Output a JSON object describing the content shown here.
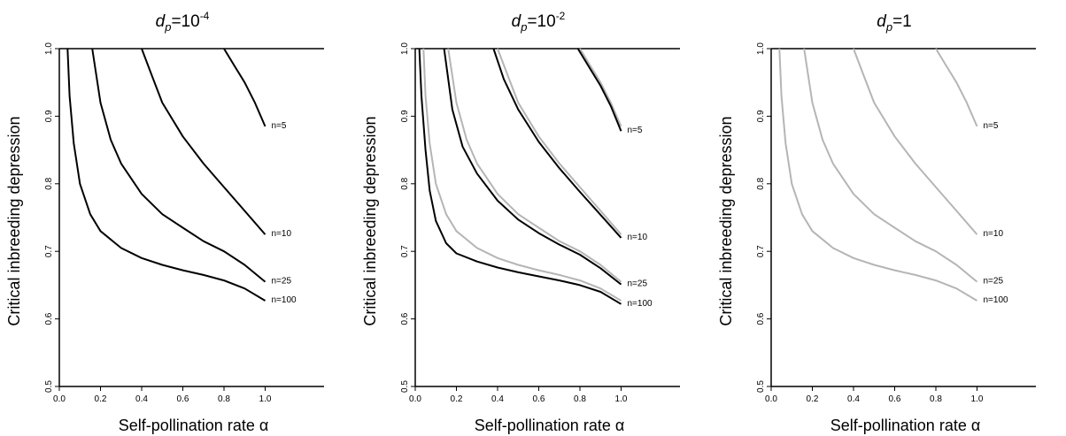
{
  "chart_data": [
    {
      "type": "line",
      "title": {
        "base": "d",
        "sub": "p",
        "mid": "=10",
        "sup": "-4"
      },
      "xlabel": "Self-pollination rate α",
      "ylabel": "Critical inbreeding depression",
      "xlim": [
        0,
        1.2
      ],
      "ylim": [
        0.5,
        1.0
      ],
      "xticks": [
        "0.0",
        "0.2",
        "0.4",
        "0.6",
        "0.8",
        "1.0"
      ],
      "yticks": [
        "0.5",
        "0.6",
        "0.7",
        "0.8",
        "0.9",
        "1.0"
      ],
      "series": [
        {
          "name": "n=5",
          "color": "#000000",
          "points": [
            [
              0.8,
              1.0
            ],
            [
              0.85,
              0.975
            ],
            [
              0.9,
              0.95
            ],
            [
              0.95,
              0.92
            ],
            [
              1.0,
              0.885
            ]
          ]
        },
        {
          "name": "n=10",
          "color": "#000000",
          "points": [
            [
              0.4,
              1.0
            ],
            [
              0.45,
              0.96
            ],
            [
              0.5,
              0.92
            ],
            [
              0.6,
              0.87
            ],
            [
              0.7,
              0.83
            ],
            [
              0.8,
              0.795
            ],
            [
              0.9,
              0.76
            ],
            [
              1.0,
              0.725
            ]
          ]
        },
        {
          "name": "n=25",
          "color": "#000000",
          "points": [
            [
              0.16,
              1.0
            ],
            [
              0.2,
              0.92
            ],
            [
              0.25,
              0.865
            ],
            [
              0.3,
              0.83
            ],
            [
              0.4,
              0.785
            ],
            [
              0.5,
              0.755
            ],
            [
              0.6,
              0.735
            ],
            [
              0.7,
              0.715
            ],
            [
              0.8,
              0.7
            ],
            [
              0.9,
              0.68
            ],
            [
              1.0,
              0.655
            ]
          ]
        },
        {
          "name": "n=100",
          "color": "#000000",
          "points": [
            [
              0.04,
              1.0
            ],
            [
              0.05,
              0.93
            ],
            [
              0.07,
              0.86
            ],
            [
              0.1,
              0.8
            ],
            [
              0.15,
              0.755
            ],
            [
              0.2,
              0.73
            ],
            [
              0.3,
              0.705
            ],
            [
              0.4,
              0.69
            ],
            [
              0.5,
              0.68
            ],
            [
              0.6,
              0.672
            ],
            [
              0.7,
              0.665
            ],
            [
              0.8,
              0.657
            ],
            [
              0.9,
              0.645
            ],
            [
              1.0,
              0.627
            ]
          ]
        }
      ]
    },
    {
      "type": "line",
      "title": {
        "base": "d",
        "sub": "p",
        "mid": "=10",
        "sup": "-2"
      },
      "xlabel": "Self-pollination rate α",
      "ylabel": "Critical inbreeding depression",
      "xlim": [
        0,
        1.2
      ],
      "ylim": [
        0.5,
        1.0
      ],
      "xticks": [
        "0.0",
        "0.2",
        "0.4",
        "0.6",
        "0.8",
        "1.0"
      ],
      "yticks": [
        "0.5",
        "0.6",
        "0.7",
        "0.8",
        "0.9",
        "1.0"
      ],
      "series": [
        {
          "color": "#b5b5b5",
          "points": [
            [
              0.8,
              1.0
            ],
            [
              0.85,
              0.975
            ],
            [
              0.9,
              0.95
            ],
            [
              0.95,
              0.92
            ],
            [
              1.0,
              0.885
            ]
          ]
        },
        {
          "color": "#b5b5b5",
          "points": [
            [
              0.4,
              1.0
            ],
            [
              0.45,
              0.96
            ],
            [
              0.5,
              0.92
            ],
            [
              0.6,
              0.87
            ],
            [
              0.7,
              0.83
            ],
            [
              0.8,
              0.795
            ],
            [
              0.9,
              0.76
            ],
            [
              1.0,
              0.725
            ]
          ]
        },
        {
          "color": "#b5b5b5",
          "points": [
            [
              0.16,
              1.0
            ],
            [
              0.2,
              0.92
            ],
            [
              0.25,
              0.865
            ],
            [
              0.3,
              0.83
            ],
            [
              0.4,
              0.785
            ],
            [
              0.5,
              0.755
            ],
            [
              0.6,
              0.735
            ],
            [
              0.7,
              0.715
            ],
            [
              0.8,
              0.7
            ],
            [
              0.9,
              0.68
            ],
            [
              1.0,
              0.655
            ]
          ]
        },
        {
          "color": "#b5b5b5",
          "points": [
            [
              0.04,
              1.0
            ],
            [
              0.05,
              0.93
            ],
            [
              0.07,
              0.86
            ],
            [
              0.1,
              0.8
            ],
            [
              0.15,
              0.755
            ],
            [
              0.2,
              0.73
            ],
            [
              0.3,
              0.705
            ],
            [
              0.4,
              0.69
            ],
            [
              0.5,
              0.68
            ],
            [
              0.6,
              0.672
            ],
            [
              0.7,
              0.665
            ],
            [
              0.8,
              0.657
            ],
            [
              0.9,
              0.645
            ],
            [
              1.0,
              0.627
            ]
          ]
        },
        {
          "name": "n=5",
          "color": "#000000",
          "points": [
            [
              0.79,
              1.0
            ],
            [
              0.85,
              0.97
            ],
            [
              0.9,
              0.945
            ],
            [
              0.95,
              0.915
            ],
            [
              1.0,
              0.878
            ]
          ]
        },
        {
          "name": "n=10",
          "color": "#000000",
          "points": [
            [
              0.38,
              1.0
            ],
            [
              0.43,
              0.955
            ],
            [
              0.5,
              0.91
            ],
            [
              0.6,
              0.862
            ],
            [
              0.7,
              0.823
            ],
            [
              0.8,
              0.788
            ],
            [
              0.9,
              0.754
            ],
            [
              1.0,
              0.72
            ]
          ]
        },
        {
          "name": "n=25",
          "color": "#000000",
          "points": [
            [
              0.14,
              1.0
            ],
            [
              0.18,
              0.91
            ],
            [
              0.23,
              0.855
            ],
            [
              0.3,
              0.815
            ],
            [
              0.4,
              0.775
            ],
            [
              0.5,
              0.747
            ],
            [
              0.6,
              0.727
            ],
            [
              0.7,
              0.71
            ],
            [
              0.8,
              0.695
            ],
            [
              0.9,
              0.675
            ],
            [
              1.0,
              0.651
            ]
          ]
        },
        {
          "name": "n=100",
          "color": "#000000",
          "points": [
            [
              0.02,
              1.0
            ],
            [
              0.03,
              0.93
            ],
            [
              0.05,
              0.85
            ],
            [
              0.07,
              0.79
            ],
            [
              0.1,
              0.745
            ],
            [
              0.15,
              0.712
            ],
            [
              0.2,
              0.697
            ],
            [
              0.3,
              0.685
            ],
            [
              0.4,
              0.676
            ],
            [
              0.5,
              0.669
            ],
            [
              0.6,
              0.663
            ],
            [
              0.7,
              0.657
            ],
            [
              0.8,
              0.65
            ],
            [
              0.9,
              0.64
            ],
            [
              1.0,
              0.622
            ]
          ]
        }
      ]
    },
    {
      "type": "line",
      "title": {
        "base": "d",
        "sub": "p",
        "mid": "=1",
        "sup": ""
      },
      "xlabel": "Self-pollination rate α",
      "ylabel": "Critical inbreeding depression",
      "xlim": [
        0,
        1.2
      ],
      "ylim": [
        0.5,
        1.0
      ],
      "xticks": [
        "0.0",
        "0.2",
        "0.4",
        "0.6",
        "0.8",
        "1.0"
      ],
      "yticks": [
        "0.5",
        "0.6",
        "0.7",
        "0.8",
        "0.9",
        "1.0"
      ],
      "series": [
        {
          "name": "n=5",
          "color": "#b5b5b5",
          "points": [
            [
              0.8,
              1.0
            ],
            [
              0.85,
              0.975
            ],
            [
              0.9,
              0.95
            ],
            [
              0.95,
              0.92
            ],
            [
              1.0,
              0.885
            ]
          ]
        },
        {
          "name": "n=10",
          "color": "#b5b5b5",
          "points": [
            [
              0.4,
              1.0
            ],
            [
              0.45,
              0.96
            ],
            [
              0.5,
              0.92
            ],
            [
              0.6,
              0.87
            ],
            [
              0.7,
              0.83
            ],
            [
              0.8,
              0.795
            ],
            [
              0.9,
              0.76
            ],
            [
              1.0,
              0.725
            ]
          ]
        },
        {
          "name": "n=25",
          "color": "#b5b5b5",
          "points": [
            [
              0.16,
              1.0
            ],
            [
              0.2,
              0.92
            ],
            [
              0.25,
              0.865
            ],
            [
              0.3,
              0.83
            ],
            [
              0.4,
              0.785
            ],
            [
              0.5,
              0.755
            ],
            [
              0.6,
              0.735
            ],
            [
              0.7,
              0.715
            ],
            [
              0.8,
              0.7
            ],
            [
              0.9,
              0.68
            ],
            [
              1.0,
              0.655
            ]
          ]
        },
        {
          "name": "n=100",
          "color": "#b5b5b5",
          "points": [
            [
              0.04,
              1.0
            ],
            [
              0.05,
              0.93
            ],
            [
              0.07,
              0.86
            ],
            [
              0.1,
              0.8
            ],
            [
              0.15,
              0.755
            ],
            [
              0.2,
              0.73
            ],
            [
              0.3,
              0.705
            ],
            [
              0.4,
              0.69
            ],
            [
              0.5,
              0.68
            ],
            [
              0.6,
              0.672
            ],
            [
              0.7,
              0.665
            ],
            [
              0.8,
              0.657
            ],
            [
              0.9,
              0.645
            ],
            [
              1.0,
              0.627
            ]
          ]
        }
      ]
    }
  ]
}
